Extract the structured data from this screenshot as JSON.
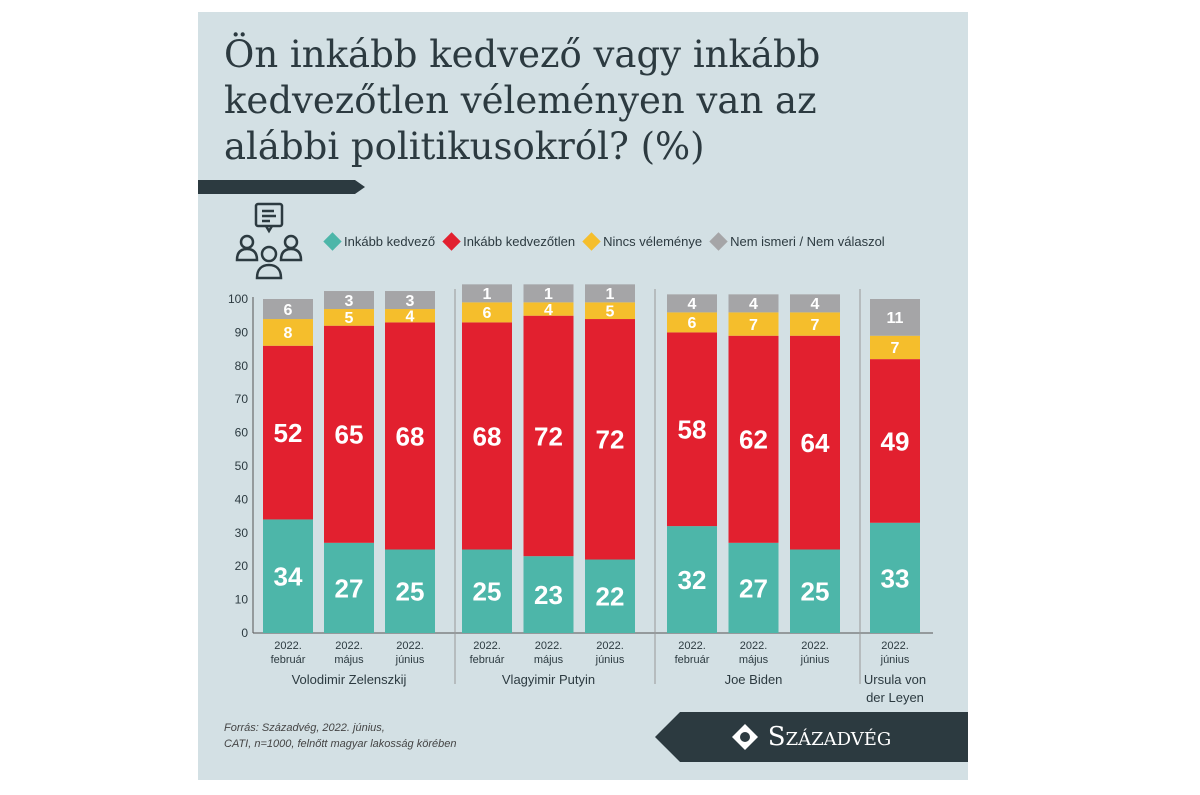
{
  "title": "Ön inkább kedvező vagy inkább kedvezőtlen véleményen van az alábbi politikusokról? (%)",
  "source_lines": [
    "Forrás: Századvég, 2022. június,",
    "CATI, n=1000, felnőtt magyar lakosság körében"
  ],
  "logo": "Századvég",
  "chart_data": {
    "type": "bar",
    "stacked": true,
    "title": "Ön inkább kedvező vagy inkább kedvezőtlen véleményen van az alábbi politikusokról? (%)",
    "ylim": [
      0,
      100
    ],
    "yticks": [
      0,
      10,
      20,
      30,
      40,
      50,
      60,
      70,
      80,
      90,
      100
    ],
    "legend_position": "top",
    "colors": {
      "Inkább kedvező": "#4db6a9",
      "Inkább kedvezőtlen": "#e2202f",
      "Nincs véleménye": "#f5be2c",
      "Nem ismeri / Nem válaszol": "#a5a5a7"
    },
    "series_names": [
      "Inkább kedvező",
      "Inkább kedvezőtlen",
      "Nincs véleménye",
      "Nem ismeri / Nem válaszol"
    ],
    "groups": [
      {
        "name": "Volodimir Zelenszkij",
        "bars": [
          {
            "year": "2022.",
            "month": "február",
            "values": [
              34,
              52,
              8,
              6
            ]
          },
          {
            "year": "2022.",
            "month": "május",
            "values": [
              27,
              65,
              5,
              3
            ]
          },
          {
            "year": "2022.",
            "month": "június",
            "values": [
              25,
              68,
              4,
              3
            ]
          }
        ]
      },
      {
        "name": "Vlagyimir Putyin",
        "bars": [
          {
            "year": "2022.",
            "month": "február",
            "values": [
              25,
              68,
              6,
              1
            ]
          },
          {
            "year": "2022.",
            "month": "május",
            "values": [
              23,
              72,
              4,
              1
            ]
          },
          {
            "year": "2022.",
            "month": "június",
            "values": [
              22,
              72,
              5,
              1
            ]
          }
        ]
      },
      {
        "name": "Joe Biden",
        "bars": [
          {
            "year": "2022.",
            "month": "február",
            "values": [
              32,
              58,
              6,
              4
            ]
          },
          {
            "year": "2022.",
            "month": "május",
            "values": [
              27,
              62,
              7,
              4
            ]
          },
          {
            "year": "2022.",
            "month": "június",
            "values": [
              25,
              64,
              7,
              4
            ]
          }
        ]
      },
      {
        "name": "Ursula von der Leyen",
        "name_lines": [
          "Ursula von",
          "der Leyen"
        ],
        "bars": [
          {
            "year": "2022.",
            "month": "június",
            "values": [
              33,
              49,
              7,
              11
            ]
          }
        ]
      }
    ]
  }
}
